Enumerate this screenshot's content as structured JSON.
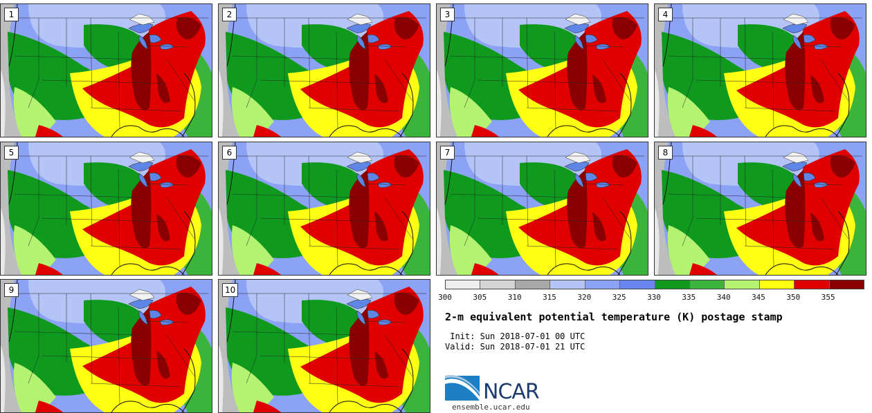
{
  "panels": [
    {
      "label": "1"
    },
    {
      "label": "2"
    },
    {
      "label": "3"
    },
    {
      "label": "4"
    },
    {
      "label": "5"
    },
    {
      "label": "6"
    },
    {
      "label": "7"
    },
    {
      "label": "8"
    },
    {
      "label": "9"
    },
    {
      "label": "10"
    }
  ],
  "colorbar": {
    "colors": [
      "#eeeeee",
      "#d4d4d4",
      "#a8a8a8",
      "#b4c4f7",
      "#8ca2f5",
      "#6a84f0",
      "#0f9a1e",
      "#3cb43c",
      "#b4f272",
      "#ffff14",
      "#e00000",
      "#8a0000"
    ],
    "ticks": [
      "300",
      "305",
      "310",
      "315",
      "320",
      "325",
      "330",
      "335",
      "340",
      "345",
      "350",
      "355"
    ]
  },
  "title": "2-m equivalent potential temperature (K) postage stamp",
  "init": " Init: Sun 2018-07-01 00 UTC",
  "valid": "Valid: Sun 2018-07-01 21 UTC",
  "logo": {
    "text": "NCAR",
    "site": "ensemble.ucar.edu"
  }
}
